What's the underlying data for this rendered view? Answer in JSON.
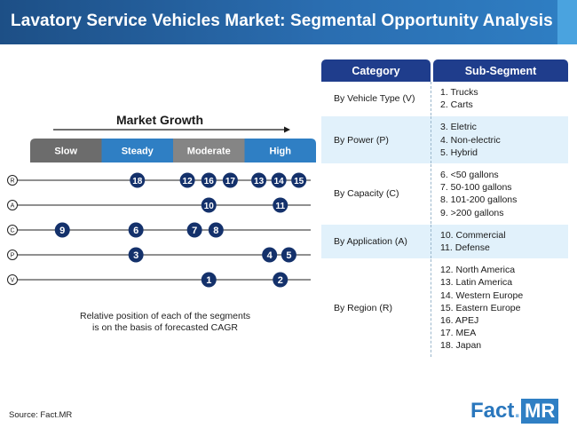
{
  "header": {
    "title": "Lavatory Service Vehicles Market: Segmental Opportunity Analysis"
  },
  "table": {
    "headers": [
      "Category",
      "Sub-Segment"
    ],
    "rows": [
      {
        "category": "By Vehicle Type (V)",
        "subs": [
          "1. Trucks",
          "2. Carts"
        ]
      },
      {
        "category": "By Power (P)",
        "subs": [
          "3. Eletric",
          "4. Non-electric",
          "5. Hybrid"
        ]
      },
      {
        "category": "By Capacity (C)",
        "subs": [
          "6. <50 gallons",
          "7. 50-100 gallons",
          "8. 101-200 gallons",
          "9.  >200 gallons"
        ]
      },
      {
        "category": "By Application (A)",
        "subs": [
          "10. Commercial",
          "11. Defense"
        ]
      },
      {
        "category": "By Region (R)",
        "subs": [
          "12. North America",
          "13. Latin America",
          "14. Western Europe",
          "15. Eastern Europe",
          "16. APEJ",
          "17. MEA",
          "18. Japan"
        ]
      }
    ]
  },
  "chart_data": {
    "type": "scatter",
    "title": "Market Growth",
    "growth_categories": [
      "Slow",
      "Steady",
      "Moderate",
      "High"
    ],
    "category_colors": [
      "#6c6c6c",
      "#2f7fc4",
      "#858585",
      "#2f7fc4"
    ],
    "rows": [
      {
        "label": "R",
        "points": [
          {
            "id": "18",
            "pos": 1.5
          },
          {
            "id": "12",
            "pos": 2.2
          },
          {
            "id": "16",
            "pos": 2.5
          },
          {
            "id": "17",
            "pos": 2.8
          },
          {
            "id": "13",
            "pos": 3.2
          },
          {
            "id": "14",
            "pos": 3.48
          },
          {
            "id": "15",
            "pos": 3.76
          }
        ]
      },
      {
        "label": "A",
        "points": [
          {
            "id": "10",
            "pos": 2.5
          },
          {
            "id": "11",
            "pos": 3.5
          }
        ]
      },
      {
        "label": "C",
        "points": [
          {
            "id": "9",
            "pos": 0.45
          },
          {
            "id": "6",
            "pos": 1.48
          },
          {
            "id": "7",
            "pos": 2.3
          },
          {
            "id": "8",
            "pos": 2.6
          }
        ]
      },
      {
        "label": "P",
        "points": [
          {
            "id": "3",
            "pos": 1.48
          },
          {
            "id": "4",
            "pos": 3.35
          },
          {
            "id": "5",
            "pos": 3.62
          }
        ]
      },
      {
        "label": "V",
        "points": [
          {
            "id": "1",
            "pos": 2.5
          },
          {
            "id": "2",
            "pos": 3.5
          }
        ]
      }
    ],
    "note": "Relative position of each of the segments is on the basis of forecasted CAGR",
    "note_lines": [
      "Relative position of each of the segments",
      "is on the basis of forecasted CAGR"
    ]
  },
  "footer": {
    "source": "Source: Fact.MR",
    "logo_text": "Fact",
    "logo_dot": ".",
    "logo_suffix": "MR"
  },
  "colors": {
    "navy": "#1f3d8c",
    "bubble": "#14316b",
    "accent": "#2f7fc4",
    "light_row": "#e1f1fb"
  }
}
